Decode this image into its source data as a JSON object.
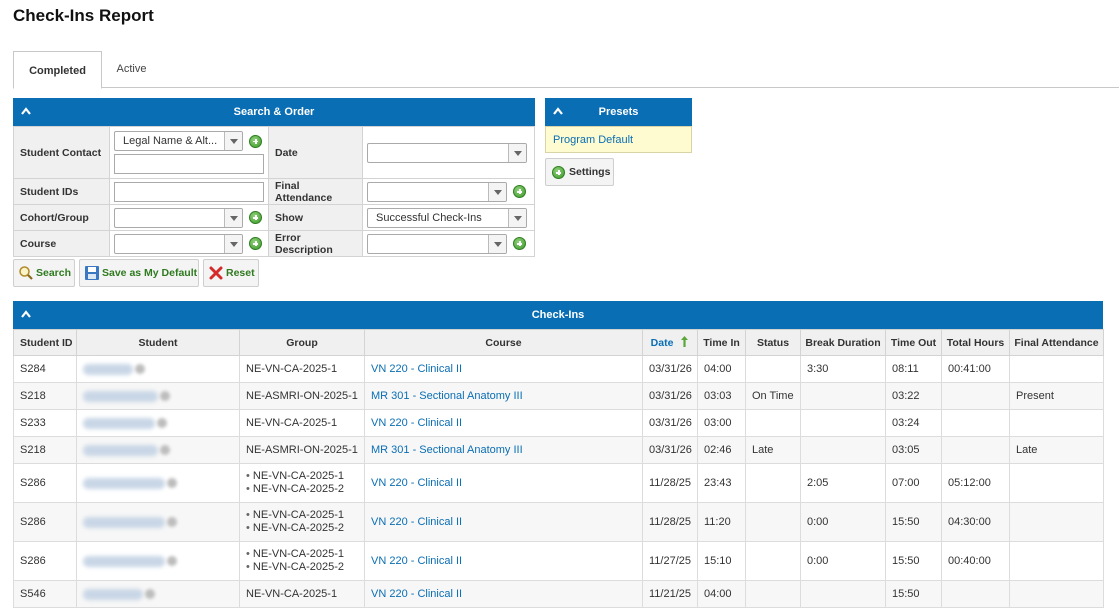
{
  "page": {
    "title": "Check-Ins Report"
  },
  "tabs": [
    {
      "label": "Completed",
      "active": true
    },
    {
      "label": "Active",
      "active": false
    }
  ],
  "search": {
    "header": "Search & Order",
    "fields": {
      "student_contact": {
        "label": "Student Contact",
        "select_value": "Legal Name & Alt...",
        "text_value": ""
      },
      "date": {
        "label": "Date",
        "value": ""
      },
      "student_ids": {
        "label": "Student IDs",
        "value": ""
      },
      "final_attendance": {
        "label": "Final Attendance",
        "value": ""
      },
      "cohort_group": {
        "label": "Cohort/Group",
        "value": ""
      },
      "show": {
        "label": "Show",
        "value": "Successful Check-Ins"
      },
      "course": {
        "label": "Course",
        "value": ""
      },
      "error_description": {
        "label": "Error Description",
        "value": ""
      }
    },
    "buttons": {
      "search": "Search",
      "save_default": "Save as My Default",
      "reset": "Reset"
    }
  },
  "presets": {
    "header": "Presets",
    "items": [
      "Program Default"
    ],
    "settings_label": "Settings"
  },
  "checkins": {
    "header": "Check-Ins",
    "columns": [
      "Student ID",
      "Student",
      "Group",
      "Course",
      "Date",
      "Time In",
      "Status",
      "Break Duration",
      "Time Out",
      "Total Hours",
      "Final Attendance"
    ],
    "rows": [
      {
        "student_id": "S284",
        "groups": [
          "NE-VN-CA-2025-1"
        ],
        "course": "VN 220 - Clinical II",
        "date": "03/31/26",
        "time_in": "04:00",
        "status": "",
        "break": "3:30",
        "time_out": "08:11",
        "total": "00:41:00",
        "final": ""
      },
      {
        "student_id": "S218",
        "groups": [
          "NE-ASMRI-ON-2025-1"
        ],
        "course": "MR 301 - Sectional Anatomy III",
        "date": "03/31/26",
        "time_in": "03:03",
        "status": "On Time",
        "break": "",
        "time_out": "03:22",
        "total": "",
        "final": "Present"
      },
      {
        "student_id": "S233",
        "groups": [
          "NE-VN-CA-2025-1"
        ],
        "course": "VN 220 - Clinical II",
        "date": "03/31/26",
        "time_in": "03:00",
        "status": "",
        "break": "",
        "time_out": "03:24",
        "total": "",
        "final": ""
      },
      {
        "student_id": "S218",
        "groups": [
          "NE-ASMRI-ON-2025-1"
        ],
        "course": "MR 301 - Sectional Anatomy III",
        "date": "03/31/26",
        "time_in": "02:46",
        "status": "Late",
        "break": "",
        "time_out": "03:05",
        "total": "",
        "final": "Late"
      },
      {
        "student_id": "S286",
        "groups": [
          "NE-VN-CA-2025-1",
          "NE-VN-CA-2025-2"
        ],
        "course": "VN 220 - Clinical II",
        "date": "11/28/25",
        "time_in": "23:43",
        "status": "",
        "break": "2:05",
        "time_out": "07:00",
        "total": "05:12:00",
        "final": ""
      },
      {
        "student_id": "S286",
        "groups": [
          "NE-VN-CA-2025-1",
          "NE-VN-CA-2025-2"
        ],
        "course": "VN 220 - Clinical II",
        "date": "11/28/25",
        "time_in": "11:20",
        "status": "",
        "break": "0:00",
        "time_out": "15:50",
        "total": "04:30:00",
        "final": ""
      },
      {
        "student_id": "S286",
        "groups": [
          "NE-VN-CA-2025-1",
          "NE-VN-CA-2025-2"
        ],
        "course": "VN 220 - Clinical II",
        "date": "11/27/25",
        "time_in": "15:10",
        "status": "",
        "break": "0:00",
        "time_out": "15:50",
        "total": "00:40:00",
        "final": ""
      },
      {
        "student_id": "S546",
        "groups": [
          "NE-VN-CA-2025-1"
        ],
        "course": "VN 220 - Clinical II",
        "date": "11/21/25",
        "time_in": "04:00",
        "status": "",
        "break": "",
        "time_out": "15:50",
        "total": "",
        "final": ""
      }
    ]
  }
}
